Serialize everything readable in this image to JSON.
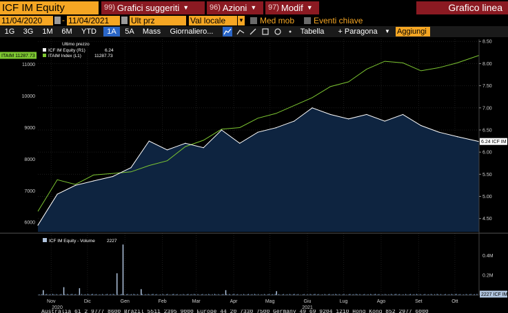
{
  "toolbar": {
    "ticker": "ICF IM Equity",
    "menus": [
      {
        "num": "99)",
        "label": "Grafici suggeriti"
      },
      {
        "num": "96)",
        "label": "Azioni"
      },
      {
        "num": "97)",
        "label": "Modif"
      }
    ],
    "chart_type": "Grafico linea"
  },
  "settings": {
    "start_date": "11/04/2020",
    "end_date": "11/04/2021",
    "price_field": "Ult prz",
    "currency": "Val locale",
    "moving_avg_label": "Med mob",
    "key_events_label": "Eventi chiave"
  },
  "ranges": [
    "1G",
    "3G",
    "1M",
    "6M",
    "YTD",
    "1A",
    "5A",
    "Mass"
  ],
  "active_range": "1A",
  "view_options": {
    "period": "Giornaliero...",
    "table": "Tabella",
    "compare": "+ Paragona",
    "add": "Aggiungi"
  },
  "colors": {
    "ticker_bg": "#f5a623",
    "menu_bg": "#8b1a22",
    "active_range": "#2a66c8",
    "price_line": "#ffffff",
    "index_line": "#7ec832",
    "area_fill": "#0e2440",
    "volume_bar": "#b0c4de"
  },
  "chart_data": {
    "type": "line",
    "legend_title": "Ultimo prezzo",
    "legend_placement": "top-left",
    "series": [
      {
        "name": "ICF IM Equity (R1)",
        "last": "6.24",
        "axis": "right",
        "color": "#ffffff",
        "x": [
          "2020-11-04",
          "2020-11-20",
          "2020-12-05",
          "2020-12-20",
          "2021-01-05",
          "2021-01-20",
          "2021-02-04",
          "2021-02-19",
          "2021-03-06",
          "2021-03-21",
          "2021-04-05",
          "2021-04-20",
          "2021-05-05",
          "2021-05-20",
          "2021-06-04",
          "2021-06-19",
          "2021-07-04",
          "2021-07-19",
          "2021-08-03",
          "2021-08-18",
          "2021-09-02",
          "2021-09-17",
          "2021-10-02",
          "2021-10-17",
          "2021-11-04"
        ],
        "y": [
          4.35,
          5.05,
          5.25,
          5.35,
          5.45,
          5.65,
          6.25,
          6.05,
          6.2,
          6.1,
          6.5,
          6.2,
          6.45,
          6.55,
          6.7,
          7.0,
          6.85,
          6.75,
          6.85,
          6.7,
          6.85,
          6.6,
          6.45,
          6.35,
          6.24
        ],
        "last_label": "6.24 ICF IM"
      },
      {
        "name": "ITAIM Index (L1)",
        "last": "11287.73",
        "axis": "left",
        "color": "#7ec832",
        "x": [
          "2020-11-04",
          "2020-11-20",
          "2020-12-05",
          "2020-12-20",
          "2021-01-05",
          "2021-01-20",
          "2021-02-04",
          "2021-02-19",
          "2021-03-06",
          "2021-03-21",
          "2021-04-05",
          "2021-04-20",
          "2021-05-05",
          "2021-05-20",
          "2021-06-04",
          "2021-06-19",
          "2021-07-04",
          "2021-07-19",
          "2021-08-03",
          "2021-08-18",
          "2021-09-02",
          "2021-09-17",
          "2021-10-02",
          "2021-10-17",
          "2021-11-04"
        ],
        "y": [
          6350,
          7350,
          7200,
          7500,
          7550,
          7600,
          7800,
          7950,
          8400,
          8600,
          8950,
          9000,
          9300,
          9450,
          9700,
          9950,
          10300,
          10450,
          10850,
          11100,
          11050,
          10800,
          10900,
          11050,
          11287.73
        ],
        "last_label": "ITAIM 11287.73"
      }
    ],
    "left_axis": {
      "min": 5700,
      "max": 11800,
      "ticks": [
        "6000",
        "7000",
        "8000",
        "9000",
        "10000",
        "11000"
      ]
    },
    "right_axis": {
      "min": 4.2,
      "max": 8.55,
      "ticks": [
        "4.50",
        "5.00",
        "5.50",
        "6.00",
        "6.50",
        "7.00",
        "7.50",
        "8.00",
        "8.50"
      ]
    },
    "volume": {
      "name": "ICF IM Equity - Volume",
      "last": "2227",
      "last_label": "2227 ICF IM",
      "ticks": [
        "0.2M",
        "0.4M"
      ],
      "max": 0.52,
      "spikes": [
        {
          "x": "2020-11-08",
          "v": 0.05
        },
        {
          "x": "2020-11-25",
          "v": 0.08
        },
        {
          "x": "2020-12-08",
          "v": 0.07
        },
        {
          "x": "2021-01-08",
          "v": 0.22
        },
        {
          "x": "2021-01-13",
          "v": 0.51
        },
        {
          "x": "2021-01-28",
          "v": 0.06
        },
        {
          "x": "2021-04-08",
          "v": 0.05
        },
        {
          "x": "2021-05-20",
          "v": 0.04
        }
      ]
    },
    "x_axis": {
      "months": [
        "Nov",
        "Dic",
        "Gen",
        "Feb",
        "Mar",
        "Apr",
        "Mag",
        "Giu",
        "Lug",
        "Ago",
        "Set",
        "Ott"
      ],
      "years": [
        "2020",
        "2021"
      ]
    }
  },
  "footer_text": "Australia 61 2 9777 8600 Brazil 5511 2395 9000 Europe 44 20 7330 7500 Germany 49 69 9204 1210 Hong Kong 852 2977 6000"
}
